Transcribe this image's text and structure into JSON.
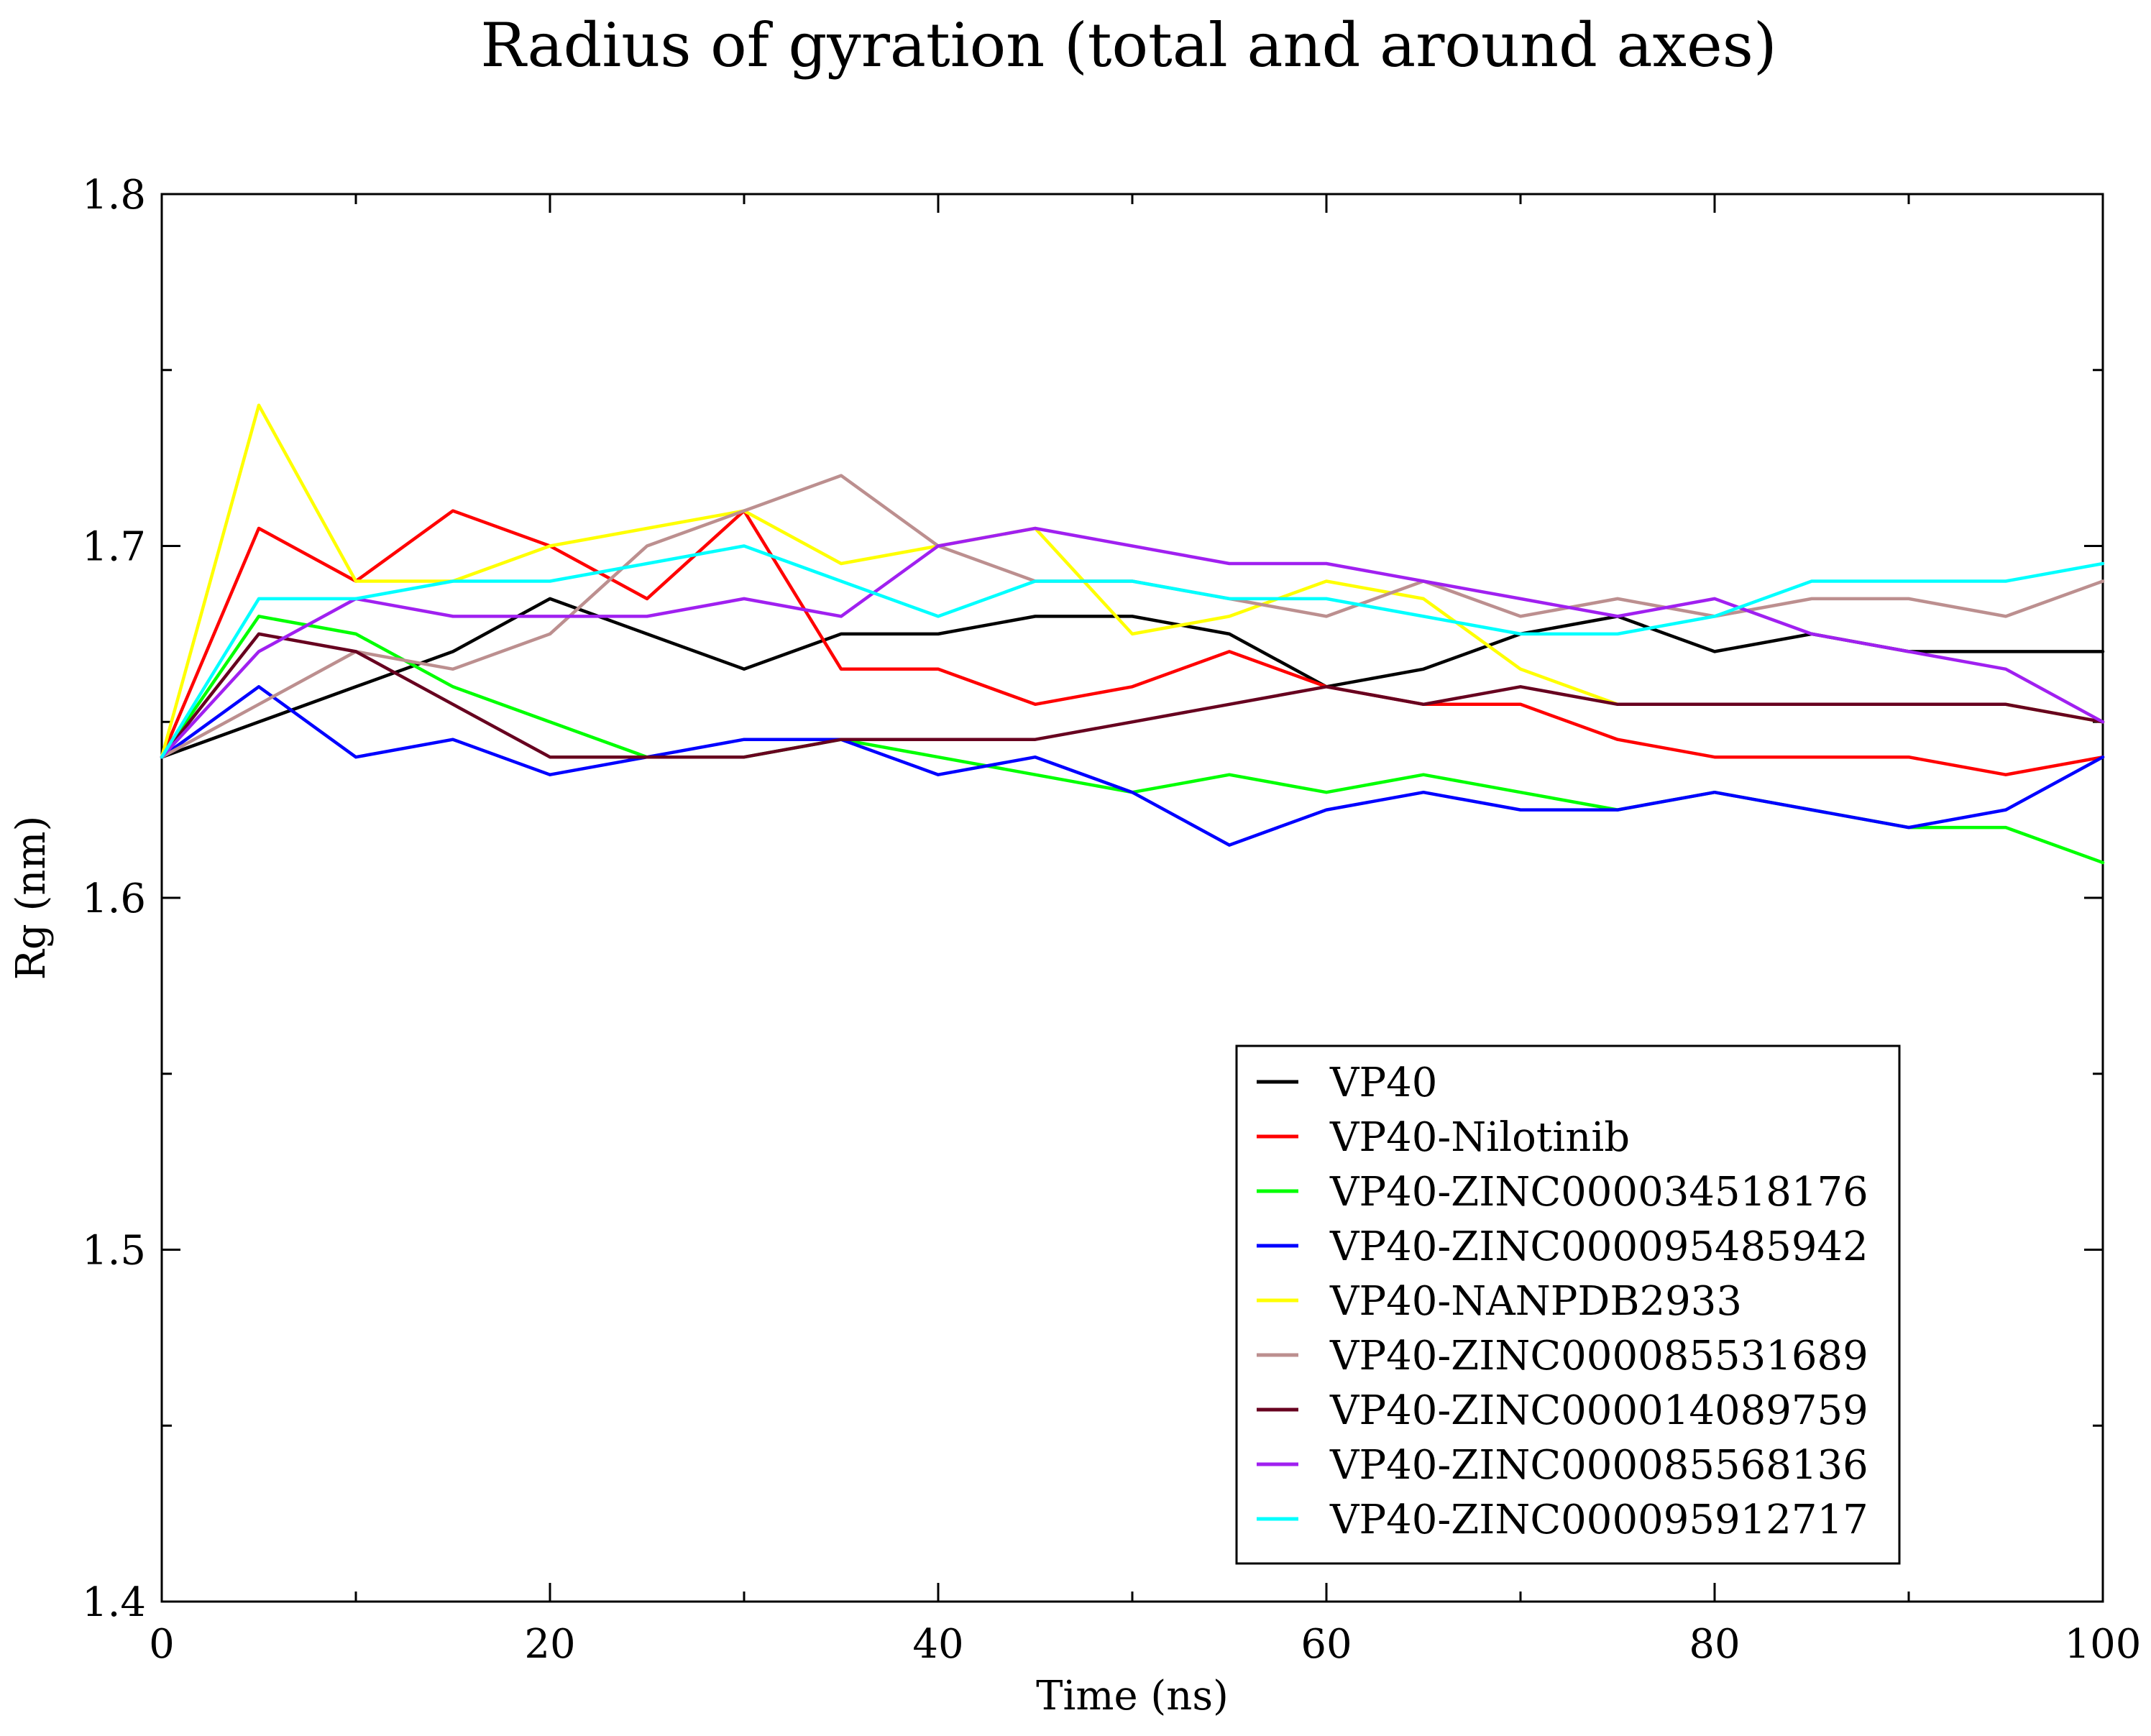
{
  "chart_data": {
    "type": "line",
    "title": "Radius of gyration (total and around axes)",
    "xlabel": "Time (ns)",
    "ylabel": "Rg (nm)",
    "xlim": [
      0,
      100
    ],
    "ylim": [
      1.4,
      1.8
    ],
    "grid": false,
    "legend_position": "bottom-right",
    "x_ticks": [
      "0",
      "20",
      "40",
      "60",
      "80",
      "100"
    ],
    "y_ticks": [
      "1.4",
      "1.5",
      "1.6",
      "1.7",
      "1.8"
    ],
    "x": [
      0,
      5,
      10,
      15,
      20,
      25,
      30,
      35,
      40,
      45,
      50,
      55,
      60,
      65,
      70,
      75,
      80,
      85,
      90,
      95,
      100
    ],
    "series": [
      {
        "name": "VP40",
        "color": "#000000",
        "values": [
          1.64,
          1.65,
          1.66,
          1.67,
          1.685,
          1.675,
          1.665,
          1.675,
          1.675,
          1.68,
          1.68,
          1.675,
          1.66,
          1.665,
          1.675,
          1.68,
          1.67,
          1.675,
          1.67,
          1.67,
          1.67
        ]
      },
      {
        "name": "VP40-Nilotinib",
        "color": "#ff0000",
        "values": [
          1.64,
          1.705,
          1.69,
          1.71,
          1.7,
          1.685,
          1.71,
          1.665,
          1.665,
          1.655,
          1.66,
          1.67,
          1.66,
          1.655,
          1.655,
          1.645,
          1.64,
          1.64,
          1.64,
          1.635,
          1.64
        ]
      },
      {
        "name": "VP40-ZINC000034518176",
        "color": "#00ff00",
        "values": [
          1.64,
          1.68,
          1.675,
          1.66,
          1.65,
          1.64,
          1.64,
          1.645,
          1.64,
          1.635,
          1.63,
          1.635,
          1.63,
          1.635,
          1.63,
          1.625,
          1.63,
          1.625,
          1.62,
          1.62,
          1.61
        ]
      },
      {
        "name": "VP40-ZINC000095485942",
        "color": "#0000ff",
        "values": [
          1.64,
          1.66,
          1.64,
          1.645,
          1.635,
          1.64,
          1.645,
          1.645,
          1.635,
          1.64,
          1.63,
          1.615,
          1.625,
          1.63,
          1.625,
          1.625,
          1.63,
          1.625,
          1.62,
          1.625,
          1.64
        ]
      },
      {
        "name": "VP40-NANPDB2933",
        "color": "#ffff00",
        "values": [
          1.64,
          1.74,
          1.69,
          1.69,
          1.7,
          1.705,
          1.71,
          1.695,
          1.7,
          1.705,
          1.675,
          1.68,
          1.69,
          1.685,
          1.665,
          1.655,
          1.655,
          1.655,
          1.655,
          1.655,
          1.65
        ]
      },
      {
        "name": "VP40-ZINC000085531689",
        "color": "#bc8f8f",
        "values": [
          1.64,
          1.655,
          1.67,
          1.665,
          1.675,
          1.7,
          1.71,
          1.72,
          1.7,
          1.69,
          1.69,
          1.685,
          1.68,
          1.69,
          1.68,
          1.685,
          1.68,
          1.685,
          1.685,
          1.68,
          1.69
        ]
      },
      {
        "name": "VP40-ZINC000014089759",
        "color": "#67001f",
        "values": [
          1.64,
          1.675,
          1.67,
          1.655,
          1.64,
          1.64,
          1.64,
          1.645,
          1.645,
          1.645,
          1.65,
          1.655,
          1.66,
          1.655,
          1.66,
          1.655,
          1.655,
          1.655,
          1.655,
          1.655,
          1.65
        ]
      },
      {
        "name": "VP40-ZINC000085568136",
        "color": "#a020f0",
        "values": [
          1.64,
          1.67,
          1.685,
          1.68,
          1.68,
          1.68,
          1.685,
          1.68,
          1.7,
          1.705,
          1.7,
          1.695,
          1.695,
          1.69,
          1.685,
          1.68,
          1.685,
          1.675,
          1.67,
          1.665,
          1.65
        ]
      },
      {
        "name": "VP40-ZINC000095912717",
        "color": "#00ffff",
        "values": [
          1.64,
          1.685,
          1.685,
          1.69,
          1.69,
          1.695,
          1.7,
          1.69,
          1.68,
          1.69,
          1.69,
          1.685,
          1.685,
          1.68,
          1.675,
          1.675,
          1.68,
          1.69,
          1.69,
          1.69,
          1.695
        ]
      }
    ]
  }
}
